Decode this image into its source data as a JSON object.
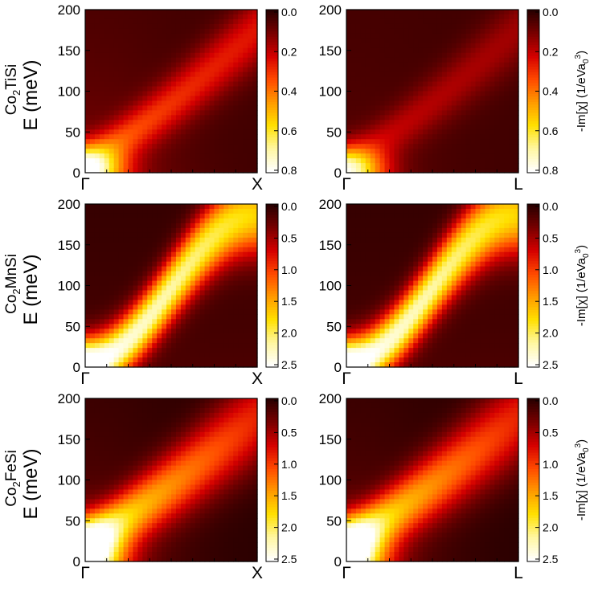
{
  "figure": {
    "rows": [
      {
        "compound": {
          "base": "Co",
          "sub": "2",
          "rest": "TiSi"
        },
        "ylabel": "E (meV)",
        "panels": [
          {
            "name": "co2tisi-gamma-x",
            "x_end_label": "X",
            "mode": "weak",
            "c1": 0.35,
            "c2": 0.12,
            "peak": 0.8,
            "show_ylabel": true,
            "show_cblabel": false
          },
          {
            "name": "co2tisi-gamma-l",
            "x_end_label": "L",
            "mode": "weak",
            "c1": 0.2,
            "c2": 0.05,
            "peak": 0.8,
            "show_ylabel": false,
            "show_cblabel": true
          }
        ],
        "colorbar_ticks": [
          "0.0",
          "0.2",
          "0.4",
          "0.6",
          "0.8"
        ]
      },
      {
        "compound": {
          "base": "Co",
          "sub": "2",
          "rest": "MnSi"
        },
        "ylabel": "E (meV)",
        "panels": [
          {
            "name": "co2mnsi-gamma-x",
            "x_end_label": "X",
            "mode": "strong",
            "peak": 2.5,
            "show_ylabel": true,
            "show_cblabel": false
          },
          {
            "name": "co2mnsi-gamma-l",
            "x_end_label": "L",
            "mode": "strong",
            "peak": 2.5,
            "show_ylabel": false,
            "show_cblabel": true
          }
        ],
        "colorbar_ticks": [
          "0.0",
          "0.5",
          "1.0",
          "1.5",
          "2.0",
          "2.5"
        ]
      },
      {
        "compound": {
          "base": "Co",
          "sub": "2",
          "rest": "FeSi"
        },
        "ylabel": "E (meV)",
        "panels": [
          {
            "name": "co2fesi-gamma-x",
            "x_end_label": "X",
            "mode": "medium",
            "peak": 2.5,
            "show_ylabel": true,
            "show_cblabel": false
          },
          {
            "name": "co2fesi-gamma-l",
            "x_end_label": "L",
            "mode": "medium",
            "peak": 2.5,
            "show_ylabel": false,
            "show_cblabel": true
          }
        ],
        "colorbar_ticks": [
          "0.0",
          "0.5",
          "1.0",
          "1.5",
          "2.0",
          "2.5"
        ]
      }
    ],
    "x_start_label": "Γ",
    "colorbar_label": {
      "prefix": "-Im[χ] (1/eVa",
      "sub": "0",
      "sup": "3",
      "suffix": ")"
    },
    "colormap_stops": [
      "#2a0000",
      "#7a0000",
      "#d50000",
      "#ff4a00",
      "#ff9a00",
      "#ffe000",
      "#fff7a0",
      "#ffffff"
    ]
  },
  "chart_data": [
    {
      "type": "heatmap",
      "title": "Co2TiSi",
      "xlabel": "",
      "ylabel": "E (meV)",
      "x_ticks": [
        "Γ",
        "X"
      ],
      "ylim": [
        0,
        200
      ],
      "y_ticks": [
        0,
        50,
        100,
        150,
        200
      ],
      "colorbar_range": [
        0.0,
        0.8
      ],
      "colorbar_ticks": [
        0.0,
        0.2,
        0.4,
        0.6,
        0.8
      ]
    },
    {
      "type": "heatmap",
      "title": "Co2TiSi",
      "xlabel": "",
      "ylabel": "",
      "x_ticks": [
        "Γ",
        "L"
      ],
      "ylim": [
        0,
        200
      ],
      "y_ticks": [
        0,
        50,
        100,
        150,
        200
      ],
      "colorbar_range": [
        0.0,
        0.8
      ],
      "colorbar_label": "-Im[χ] (1/eVa0^3)"
    },
    {
      "type": "heatmap",
      "title": "Co2MnSi",
      "xlabel": "",
      "ylabel": "E (meV)",
      "x_ticks": [
        "Γ",
        "X"
      ],
      "ylim": [
        0,
        200
      ],
      "y_ticks": [
        0,
        50,
        100,
        150,
        200
      ],
      "colorbar_range": [
        0.0,
        2.5
      ],
      "colorbar_ticks": [
        0.0,
        0.5,
        1.0,
        1.5,
        2.0,
        2.5
      ]
    },
    {
      "type": "heatmap",
      "title": "Co2MnSi",
      "xlabel": "",
      "ylabel": "",
      "x_ticks": [
        "Γ",
        "L"
      ],
      "ylim": [
        0,
        200
      ],
      "y_ticks": [
        0,
        50,
        100,
        150,
        200
      ],
      "colorbar_range": [
        0.0,
        2.5
      ],
      "colorbar_label": "-Im[χ] (1/eVa0^3)"
    },
    {
      "type": "heatmap",
      "title": "Co2FeSi",
      "xlabel": "",
      "ylabel": "E (meV)",
      "x_ticks": [
        "Γ",
        "X"
      ],
      "ylim": [
        0,
        200
      ],
      "y_ticks": [
        0,
        50,
        100,
        150,
        200
      ],
      "colorbar_range": [
        0.0,
        2.5
      ],
      "colorbar_ticks": [
        0.0,
        0.5,
        1.0,
        1.5,
        2.0,
        2.5
      ]
    },
    {
      "type": "heatmap",
      "title": "Co2FeSi",
      "xlabel": "",
      "ylabel": "",
      "x_ticks": [
        "Γ",
        "L"
      ],
      "ylim": [
        0,
        200
      ],
      "y_ticks": [
        0,
        50,
        100,
        150,
        200
      ],
      "colorbar_range": [
        0.0,
        2.5
      ],
      "colorbar_label": "-Im[χ] (1/eVa0^3)"
    }
  ]
}
